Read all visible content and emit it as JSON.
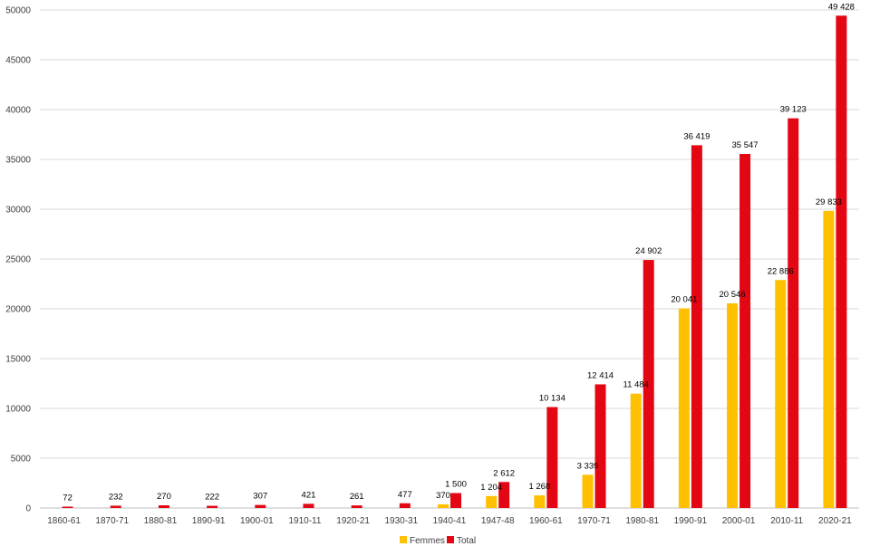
{
  "chart_data": {
    "type": "bar",
    "categories": [
      "1860-61",
      "1870-71",
      "1880-81",
      "1890-91",
      "1900-01",
      "1910-11",
      "1920-21",
      "1930-31",
      "1940-41",
      "1947-48",
      "1960-61",
      "1970-71",
      "1980-81",
      "1990-91",
      "2000-01",
      "2010-11",
      "2020-21"
    ],
    "series": [
      {
        "name": "Femmes",
        "color": "#FFC000",
        "values": [
          null,
          null,
          null,
          null,
          null,
          null,
          null,
          null,
          370,
          1204,
          1268,
          3339,
          11484,
          20041,
          20546,
          22886,
          29833
        ],
        "labels": [
          "",
          "",
          "",
          "",
          "",
          "",
          "",
          "",
          "370",
          "1 204",
          "1 268",
          "3 339",
          "11 484",
          "20 041",
          "20 546",
          "22 886",
          "29 833"
        ]
      },
      {
        "name": "Total",
        "color": "#E30613",
        "values": [
          72,
          232,
          270,
          222,
          307,
          421,
          261,
          477,
          1500,
          2612,
          10134,
          12414,
          24902,
          36419,
          35547,
          39123,
          49428
        ],
        "labels": [
          "72",
          "232",
          "270",
          "222",
          "307",
          "421",
          "261",
          "477",
          "1 500",
          "2 612",
          "10 134",
          "12 414",
          "24 902",
          "36 419",
          "35 547",
          "39 123",
          "49 428"
        ]
      }
    ],
    "yticks": [
      "0",
      "5000",
      "10000",
      "15000",
      "20000",
      "25000",
      "30000",
      "35000",
      "40000",
      "45000",
      "50000"
    ],
    "ylim": [
      0,
      50000
    ],
    "grid": true,
    "legend": "bottom-center"
  }
}
